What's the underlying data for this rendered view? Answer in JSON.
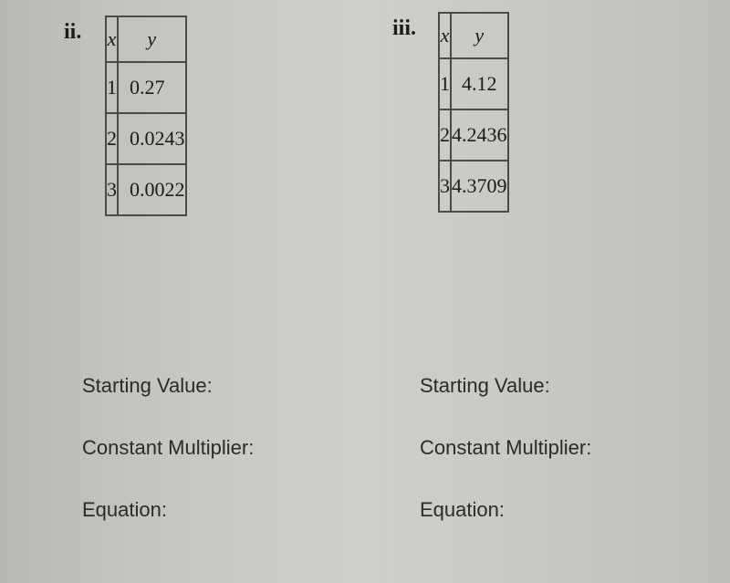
{
  "problems": {
    "ii": {
      "label": "ii.",
      "table": {
        "headers": {
          "x": "x",
          "y": "y"
        },
        "rows": [
          {
            "x": "1",
            "y": "0.27"
          },
          {
            "x": "2",
            "y": "0.0243"
          },
          {
            "x": "3",
            "y": "0.0022"
          }
        ]
      },
      "fields": {
        "starting_value": "Starting Value:",
        "constant_multiplier": "Constant Multiplier:",
        "equation": "Equation:"
      }
    },
    "iii": {
      "label": "iii.",
      "table": {
        "headers": {
          "x": "x",
          "y": "y"
        },
        "rows": [
          {
            "x": "1",
            "y": "4.12"
          },
          {
            "x": "2",
            "y": "4.2436"
          },
          {
            "x": "3",
            "y": "4.3709"
          }
        ]
      },
      "fields": {
        "starting_value": "Starting Value:",
        "constant_multiplier": "Constant Multiplier:",
        "equation": "Equation:"
      }
    }
  }
}
